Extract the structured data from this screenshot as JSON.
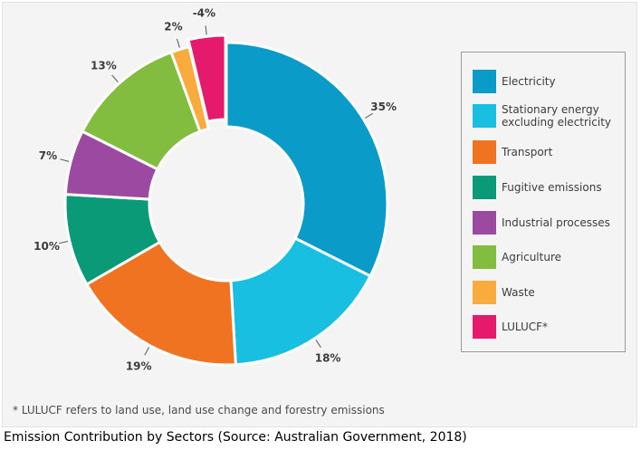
{
  "chart_data": {
    "type": "pie",
    "donut": true,
    "title": "",
    "legend_position": "right",
    "slices": [
      {
        "label": "Electricity",
        "value": 35,
        "value_label": "35%",
        "color": "#0a9bc8"
      },
      {
        "label": "Stationary energy excluding electricity",
        "value": 18,
        "value_label": "18%",
        "color": "#18bfe0"
      },
      {
        "label": "Transport",
        "value": 19,
        "value_label": "19%",
        "color": "#f07322"
      },
      {
        "label": "Fugitive emissions",
        "value": 10,
        "value_label": "10%",
        "color": "#0b9a77"
      },
      {
        "label": "Industrial processes",
        "value": 7,
        "value_label": "7%",
        "color": "#9c4aa1"
      },
      {
        "label": "Agriculture",
        "value": 13,
        "value_label": "13%",
        "color": "#82bd40"
      },
      {
        "label": "Waste",
        "value": 2,
        "value_label": "2%",
        "color": "#f9ac3d"
      },
      {
        "label": "LULUCF*",
        "value": -4,
        "value_label": "-4%",
        "color": "#e51a6c",
        "exploded": true
      }
    ]
  },
  "footnote": "* LULUCF refers to land use, land use change and forestry emissions",
  "caption": "Emission Contribution by Sectors (Source: Australian Government, 2018)"
}
